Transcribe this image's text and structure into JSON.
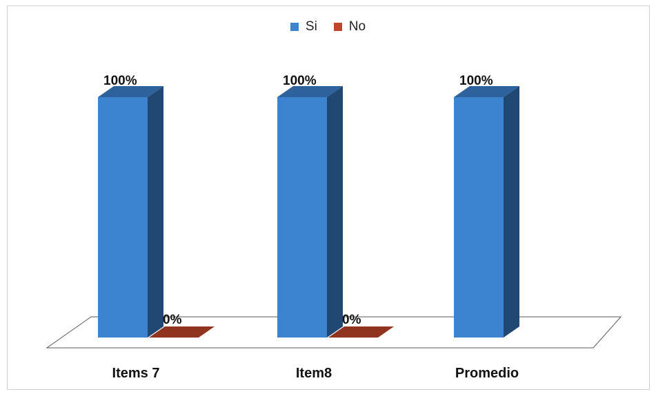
{
  "chart_data": {
    "type": "bar",
    "categories": [
      "Items 7",
      "Item8",
      "Promedio"
    ],
    "series": [
      {
        "name": "Si",
        "values": [
          100,
          100,
          100
        ],
        "labels": [
          "100%",
          "100%",
          "100%"
        ],
        "color": "#3c83d0"
      },
      {
        "name": "No",
        "values": [
          0,
          0,
          null
        ],
        "labels": [
          "0%",
          "0%",
          ""
        ],
        "color": "#c0452a"
      }
    ],
    "ylim": [
      0,
      100
    ],
    "legend_position": "top-center",
    "grid": false,
    "style": "3d-column"
  }
}
